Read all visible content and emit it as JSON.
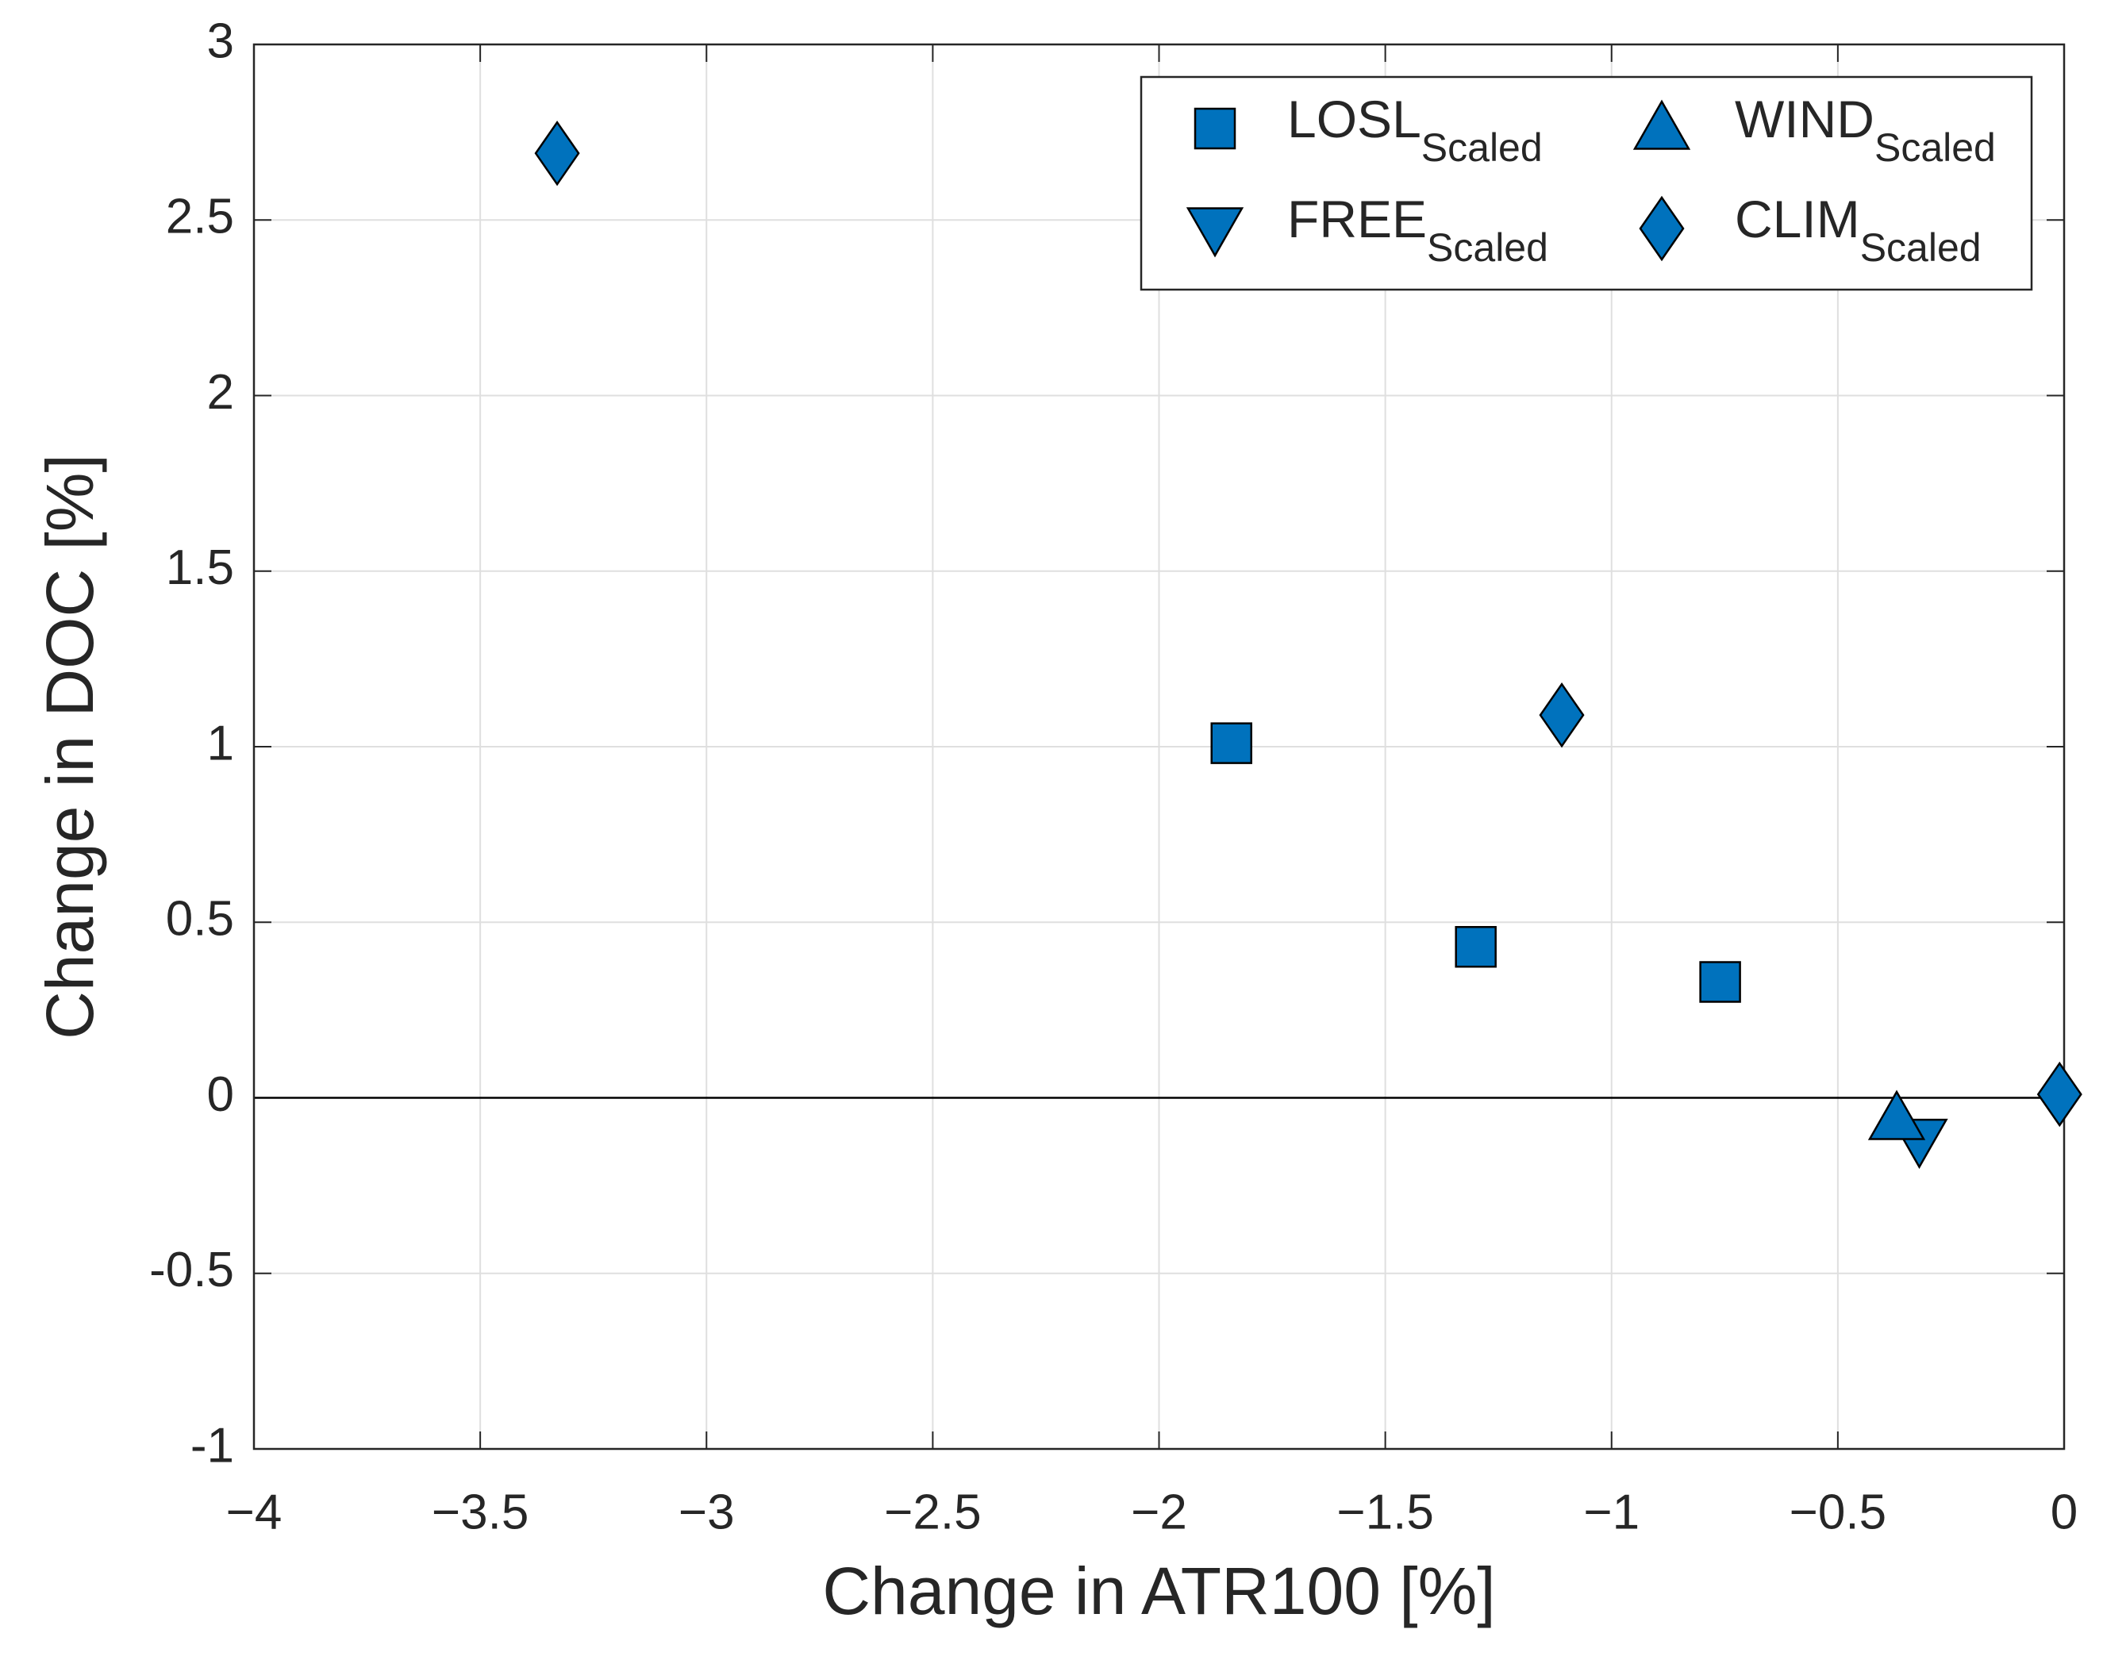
{
  "chart_data": {
    "type": "scatter",
    "x_label": "Change in ATR100 [%]",
    "y_label": "Change in DOC [%]",
    "xlim": [
      -4,
      0
    ],
    "ylim": [
      -1,
      3
    ],
    "xticks": [
      {
        "value": -4,
        "label": "−4"
      },
      {
        "value": -3.5,
        "label": "−3.5"
      },
      {
        "value": -3,
        "label": "−3"
      },
      {
        "value": -2.5,
        "label": "−2.5"
      },
      {
        "value": -2,
        "label": "−2"
      },
      {
        "value": -1.5,
        "label": "−1.5"
      },
      {
        "value": -1,
        "label": "−1"
      },
      {
        "value": -0.5,
        "label": "−0.5"
      },
      0
    ],
    "yticks": [
      -1,
      -0.5,
      0,
      0.5,
      1,
      1.5,
      2,
      2.5,
      3
    ],
    "grid": true,
    "zero_line": true,
    "legend_position": "upper right",
    "series": [
      {
        "name": "LOSL",
        "subscript": "Scaled",
        "marker": "square",
        "color": "#0072BD",
        "x": [
          -1.84,
          -1.3,
          -0.76
        ],
        "y": [
          1.01,
          0.43,
          0.33
        ]
      },
      {
        "name": "FREE",
        "subscript": "Scaled",
        "marker": "triangle-down",
        "color": "#0072BD",
        "x": [
          -0.32
        ],
        "y": [
          -0.12
        ]
      },
      {
        "name": "WIND",
        "subscript": "Scaled",
        "marker": "triangle-up",
        "color": "#0072BD",
        "x": [
          -0.37
        ],
        "y": [
          -0.06
        ]
      },
      {
        "name": "CLIM",
        "subscript": "Scaled",
        "marker": "diamond",
        "color": "#0072BD",
        "x": [
          -3.33,
          -1.11,
          -0.01
        ],
        "y": [
          2.69,
          1.09,
          0.01
        ]
      }
    ]
  }
}
